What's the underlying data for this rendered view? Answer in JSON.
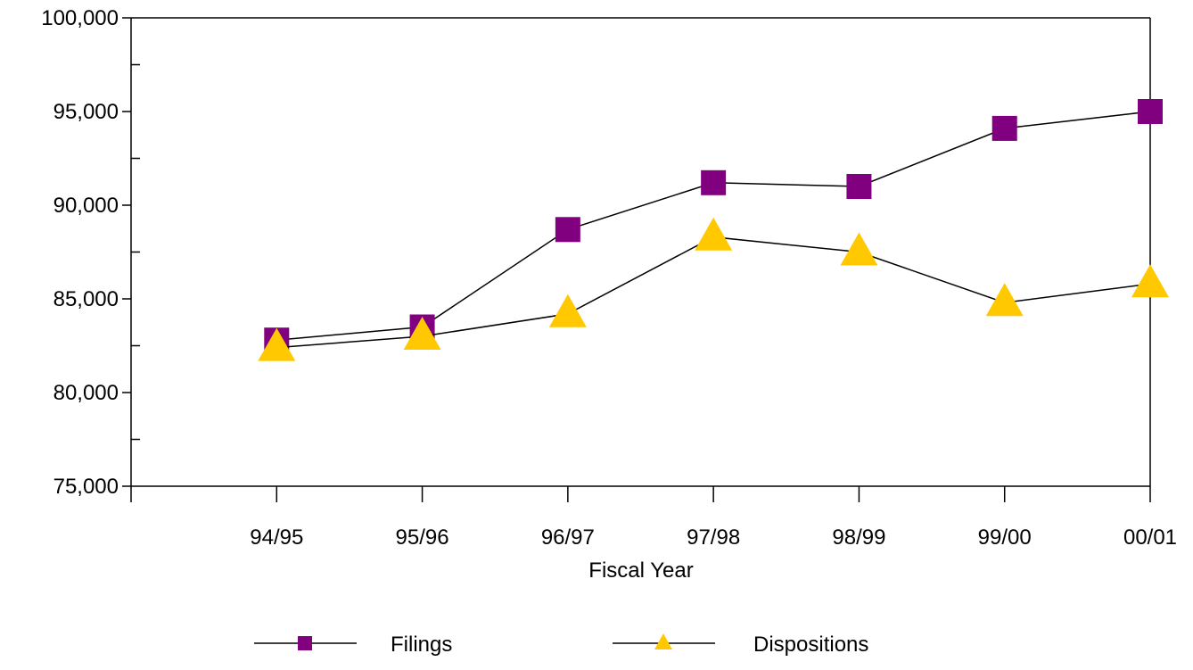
{
  "chart_data": {
    "type": "line",
    "title": "",
    "xlabel": "Fiscal Year",
    "ylabel": "",
    "categories": [
      "94/95",
      "95/96",
      "96/97",
      "97/98",
      "98/99",
      "99/00",
      "00/01"
    ],
    "ylim": [
      75000,
      100000
    ],
    "y_ticks": [
      75000,
      80000,
      85000,
      90000,
      95000,
      100000
    ],
    "y_tick_labels": [
      "75,000",
      "80,000",
      "85,000",
      "90,000",
      "95,000",
      "100,000"
    ],
    "grid": false,
    "legend_position": "bottom",
    "series": [
      {
        "name": "Filings",
        "marker": "square",
        "color": "#800080",
        "values": [
          82800,
          83500,
          88700,
          91200,
          91000,
          94100,
          95000
        ]
      },
      {
        "name": "Dispositions",
        "marker": "triangle",
        "color": "#FFC800",
        "values": [
          82400,
          83000,
          84200,
          88300,
          87500,
          84800,
          85800
        ]
      }
    ]
  }
}
